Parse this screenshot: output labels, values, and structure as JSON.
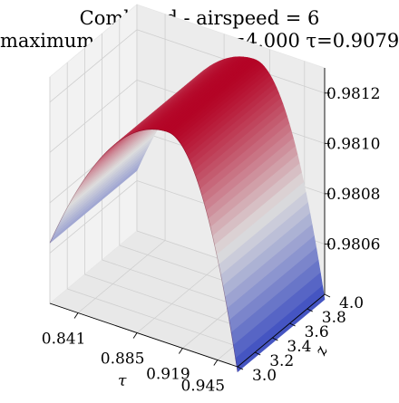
{
  "chart_data": {
    "type": "surface",
    "title_line1": "Combined - airspeed = 6",
    "title_line2": "maximum=0.981 with z=4.000 τ=0.9079",
    "xlabel": "τ",
    "ylabel": "z",
    "x_ticks": [
      "0.841",
      "0.885",
      "0.919",
      "0.945"
    ],
    "y_ticks": [
      "3.0",
      "3.2",
      "3.4",
      "3.6",
      "3.8",
      "4.0"
    ],
    "z_ticks": [
      "0.9806",
      "0.9808",
      "0.9810",
      "0.9812"
    ],
    "xlim": [
      0.82,
      0.96
    ],
    "ylim": [
      3.0,
      4.0
    ],
    "zlim": [
      0.9804,
      0.9813
    ],
    "surface": {
      "peak_tau": 0.9079,
      "peak_value": 0.98124,
      "min_value": 0.98038,
      "value_at_tau_min": 0.98064,
      "varies_with_z": false
    },
    "colormap": "coolwarm",
    "colors": {
      "cold": "#3b4cc0",
      "neutral": "#dddddd",
      "hot": "#b40426"
    }
  }
}
